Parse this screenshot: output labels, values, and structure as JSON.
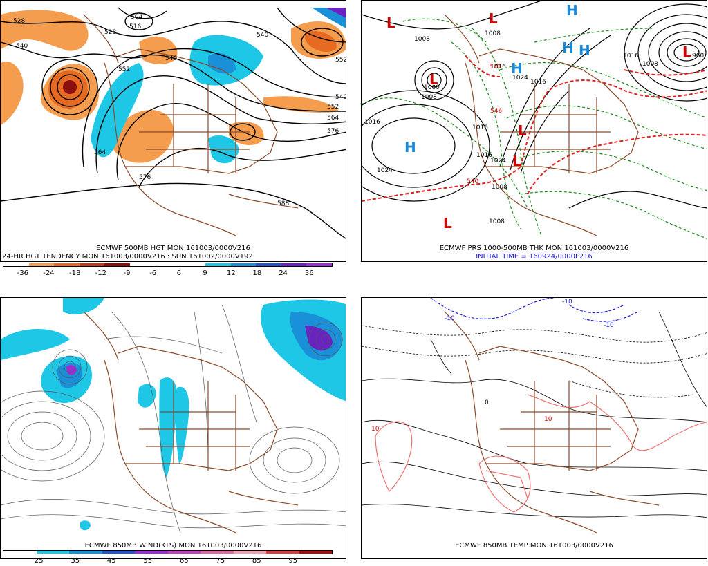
{
  "panels": {
    "p1": {
      "caption_line1": "ECMWF 500MB HGT MON 161003/0000V216",
      "caption_line2": "24-HR HGT TENDENCY MON 161003/0000V216 : SUN 161002/0000V192",
      "contour_labels": [
        "528",
        "528",
        "540",
        "552",
        "540",
        "516",
        "504",
        "540",
        "552",
        "564",
        "576",
        "564",
        "576",
        "588",
        "540",
        "552"
      ],
      "colorbar": {
        "colors": [
          "#ffffff",
          "#f59d4f",
          "#e66a21",
          "#c23a1c",
          "#8a1010",
          "#ffffff",
          "#ffffff",
          "#ffffff",
          "#1fc7e6",
          "#1a90d8",
          "#2456c8",
          "#6a22c0",
          "#9b30d0"
        ],
        "tick_labels": [
          "-36",
          "-24",
          "-18",
          "-12",
          "-9",
          "-6",
          "6",
          "9",
          "12",
          "18",
          "24",
          "36"
        ]
      }
    },
    "p2": {
      "caption_line1": "ECMWF PRS 1000-500MB THK MON 161003/0000V216",
      "caption_line2": "INITIAL TIME = 160924/0000F216",
      "highs_lows": [
        "L",
        "L",
        "L",
        "L",
        "L",
        "L",
        "H",
        "H",
        "H",
        "H",
        "H",
        "L"
      ],
      "isobar_labels": [
        "1016",
        "1024",
        "1008",
        "1000",
        "1016",
        "1008",
        "1016",
        "1024",
        "1016",
        "1008",
        "1016",
        "1008",
        "1008",
        "1024",
        "1016",
        "1008",
        "960"
      ],
      "thickness_labels": [
        "540",
        "570",
        "546"
      ]
    },
    "p3": {
      "caption": "ECMWF 850MB WIND(KTS) MON 161003/0000V216",
      "colorbar": {
        "colors": [
          "#ffffff",
          "#1fc7e6",
          "#1a90d8",
          "#2456c8",
          "#9b30d0",
          "#c040c0",
          "#e066a0",
          "#f0a0b0",
          "#d04040",
          "#a01010"
        ],
        "tick_labels": [
          "25",
          "35",
          "45",
          "55",
          "65",
          "75",
          "85",
          "95"
        ]
      }
    },
    "p4": {
      "caption": "ECMWF 850MB TEMP MON 161003/0000V216",
      "temp_labels": [
        "-10",
        "-10",
        "-10",
        "10",
        "10",
        "0"
      ]
    }
  },
  "colors": {
    "contour": "#000000",
    "coast": "#8b4a2b",
    "green_isobar": "#1a8a1a",
    "red_thick": "#e02020",
    "blue_cold": "#1a1ad0",
    "pink_warm": "#f07070"
  }
}
